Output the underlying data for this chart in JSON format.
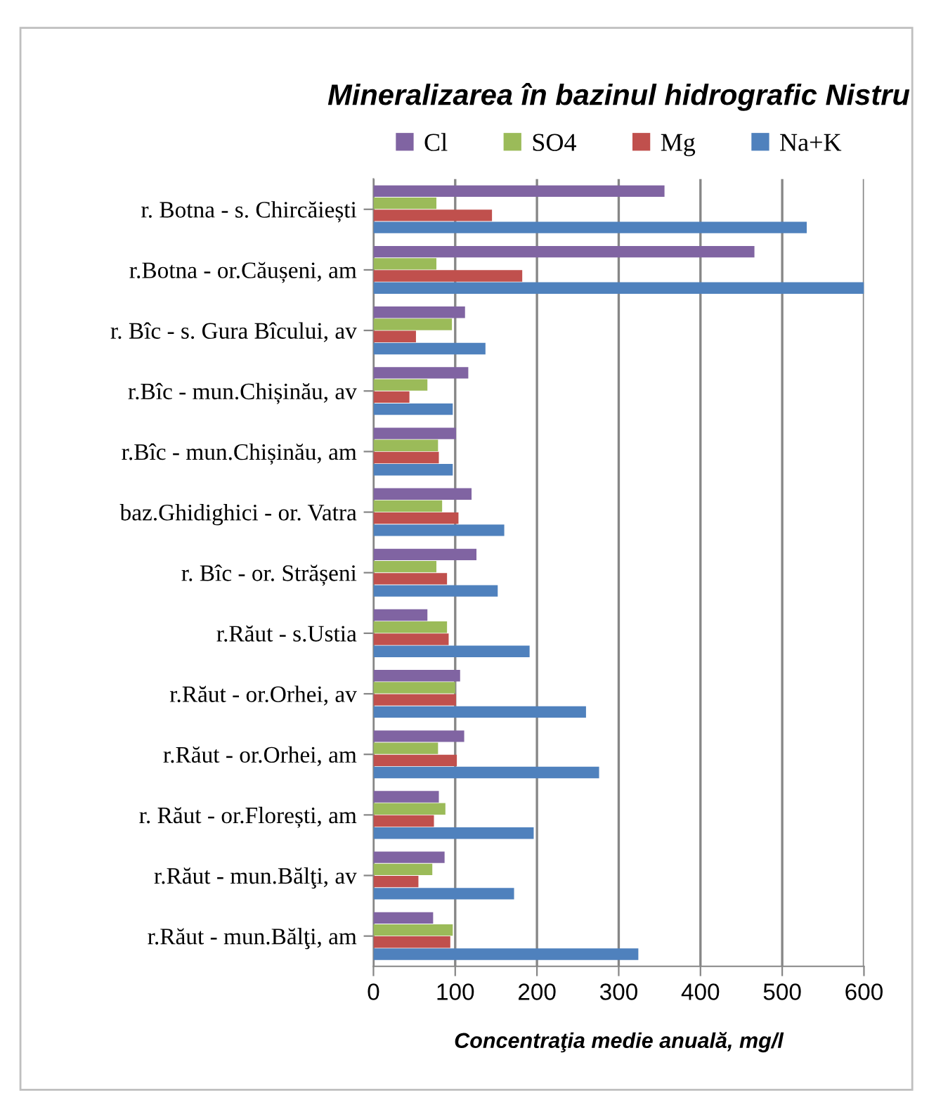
{
  "chart_data": {
    "type": "bar",
    "orientation": "horizontal",
    "title": "Mineralizarea în bazinul hidrografic Nistru",
    "xlabel": "Concentraţia medie anuală, mg/l",
    "categories": [
      "r. Botna - s. Chircăiești",
      "r.Botna - or.Căușeni, am",
      "r. Bîc - s. Gura Bîcului, av",
      "r.Bîc - mun.Chișinău, av",
      "r.Bîc - mun.Chișinău, am",
      "baz.Ghidighici - or. Vatra",
      "r. Bîc - or. Strășeni",
      "r.Răut - s.Ustia",
      "r.Răut - or.Orhei, av",
      "r.Răut - or.Orhei, am",
      "r. Răut - or.Florești, am",
      "r.Răut - mun.Bălţi, av",
      "r.Răut - mun.Bălţi, am"
    ],
    "series": [
      {
        "name": "Cl",
        "color": "#8064a2",
        "values": [
          356,
          466,
          112,
          116,
          101,
          120,
          126,
          66,
          106,
          111,
          80,
          87,
          73
        ]
      },
      {
        "name": "SO4",
        "color": "#9bbb59",
        "values": [
          77,
          77,
          96,
          66,
          79,
          84,
          77,
          90,
          100,
          79,
          88,
          72,
          97
        ]
      },
      {
        "name": "Mg",
        "color": "#c0504d",
        "values": [
          145,
          182,
          52,
          44,
          80,
          104,
          90,
          92,
          101,
          102,
          74,
          55,
          94
        ]
      },
      {
        "name": "Na+K",
        "color": "#4f81bd",
        "values": [
          530,
          600,
          137,
          97,
          97,
          160,
          152,
          191,
          260,
          276,
          196,
          172,
          324
        ]
      }
    ],
    "xlim": [
      0,
      600
    ],
    "xticks": [
      0,
      100,
      200,
      300,
      400,
      500,
      600
    ],
    "grid": "x",
    "legend": "top"
  }
}
